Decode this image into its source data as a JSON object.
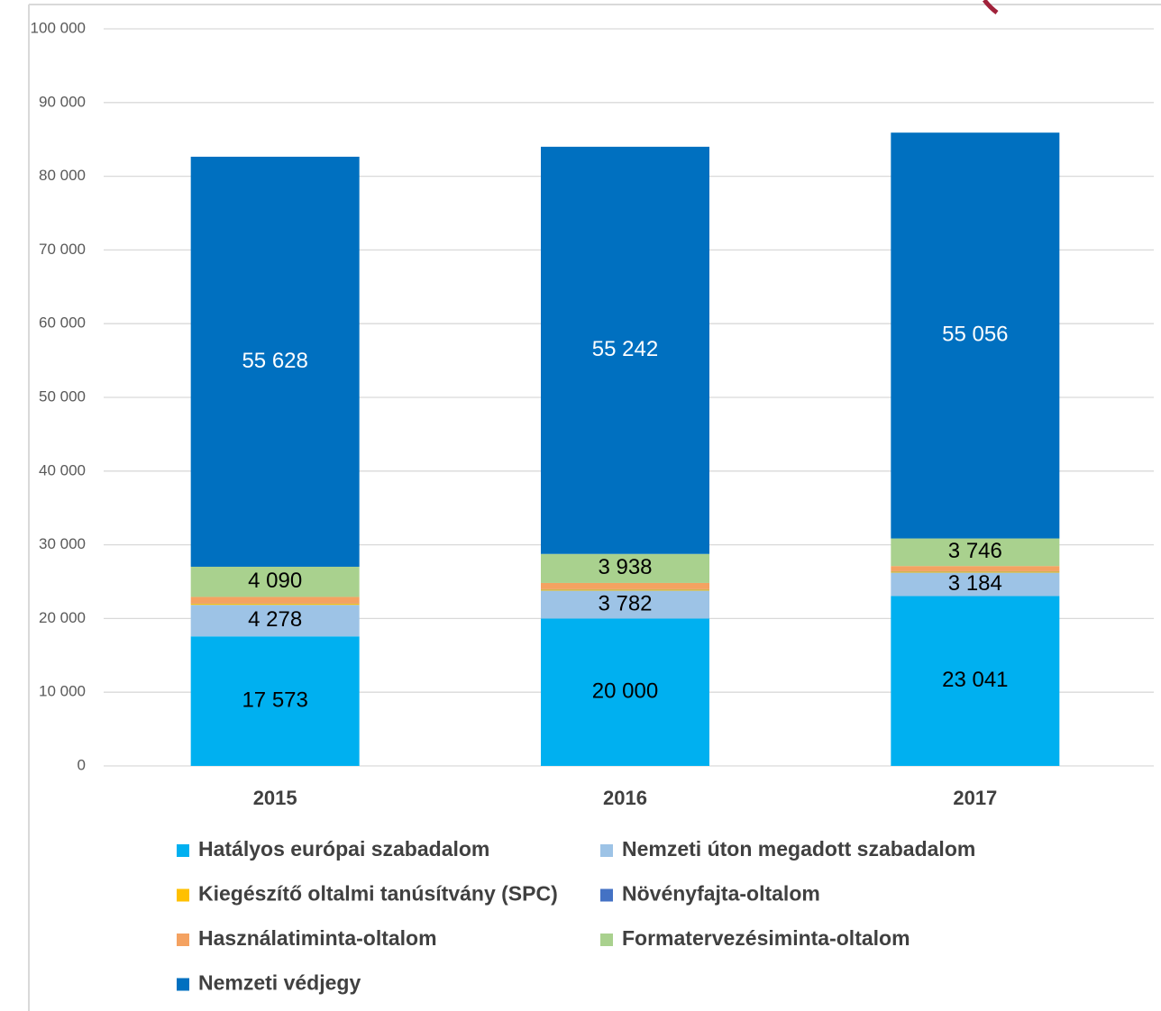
{
  "chart_data": {
    "type": "stacked_bar",
    "categories": [
      "2015",
      "2016",
      "2017"
    ],
    "ylim": [
      0,
      100000
    ],
    "yticks": [
      0,
      {
        "value": 10000,
        "label": "10 000"
      },
      {
        "value": 20000,
        "label": "20 000"
      },
      {
        "value": 30000,
        "label": "30 000"
      },
      {
        "value": 40000,
        "label": "40 000"
      },
      {
        "value": 50000,
        "label": "50 000"
      },
      {
        "value": 60000,
        "label": "60 000"
      },
      {
        "value": 70000,
        "label": "70 000"
      },
      {
        "value": 80000,
        "label": "80 000"
      },
      {
        "value": 90000,
        "label": "90 000"
      },
      {
        "value": 100000,
        "label": "100 000"
      }
    ],
    "grid": true,
    "legend": "bottom",
    "series": [
      {
        "name": "Hatályos európai szabadalom",
        "color": "#00b0f0",
        "values": [
          17573,
          20000,
          23041
        ],
        "value_labels": [
          "17 573",
          "20 000",
          "23 041"
        ]
      },
      {
        "name": "Nemzeti úton megadott szabadalom",
        "color": "#9dc3e6",
        "values": [
          4278,
          3782,
          3184
        ],
        "value_labels": [
          "4 278",
          "3 782",
          "3 184"
        ]
      },
      {
        "name": "Kiegészítő oltalmi tanúsítvány (SPC)",
        "color": "#ffc000",
        "values": [
          150,
          150,
          150
        ]
      },
      {
        "name": "Növényfajta-oltalom",
        "color": "#4472c4",
        "values": [
          30,
          40,
          40
        ]
      },
      {
        "name": "Használatiminta-oltalom",
        "color": "#f4a261",
        "values": [
          900,
          850,
          700
        ]
      },
      {
        "name": "Formatervezésiminta-oltalom",
        "color": "#a9d18e",
        "values": [
          4090,
          3938,
          3746
        ],
        "value_labels": [
          "4 090",
          "3 938",
          "3 746"
        ]
      },
      {
        "name": "Nemzeti védjegy",
        "color": "#0070c0",
        "values": [
          55628,
          55242,
          55056
        ],
        "value_labels": [
          "55 628",
          "55 242",
          "55 056"
        ]
      }
    ]
  }
}
